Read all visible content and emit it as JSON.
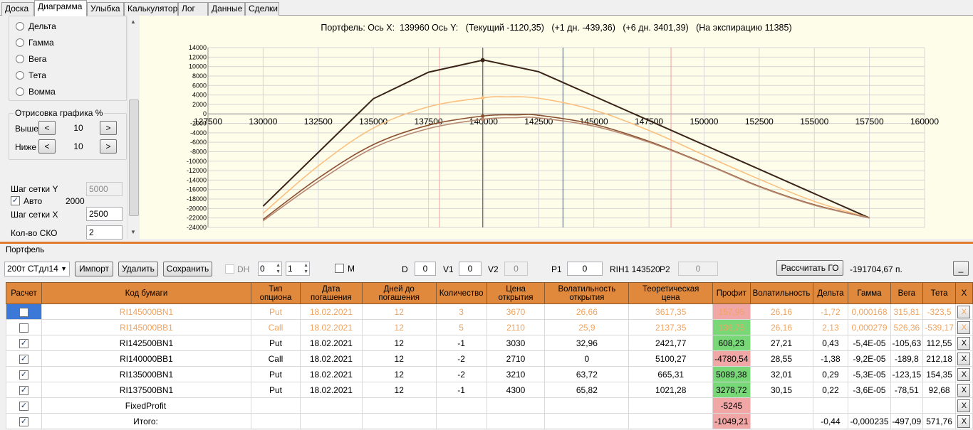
{
  "tabs": [
    "Доска",
    "Диаграмма",
    "Улыбка",
    "Калькулятор",
    "Лог",
    "Данные",
    "Сделки"
  ],
  "left_panel": {
    "radios": [
      "Дельта",
      "Гамма",
      "Вега",
      "Тета",
      "Вомма"
    ],
    "draw_group_title": "Отрисовка графика %",
    "above_label": "Выше",
    "above_value": "10",
    "below_label": "Ниже",
    "below_value": "10",
    "btn_minus": "<",
    "btn_plus": ">",
    "grid_y_label": "Шаг сетки Y",
    "grid_y_value": "5000",
    "auto_label": "Авто",
    "auto_value": "2000",
    "grid_x_label": "Шаг сетки X",
    "grid_x_value": "2500",
    "sko_label": "Кол-во СКО",
    "sko_value": "2"
  },
  "chart_title": "Портфель: Ось X:  139960 Ось Y:   (Текущий -1120,35)   (+1 дн. -439,36)   (+6 дн. 3401,39)   (На экспирацию 11385)",
  "chart_data": {
    "type": "line",
    "xlim": [
      127500,
      160000
    ],
    "ylim": [
      -24000,
      14000
    ],
    "x_ticks": [
      127500,
      130000,
      132500,
      135000,
      137500,
      140000,
      142500,
      145000,
      147500,
      150000,
      152500,
      155000,
      157500,
      160000
    ],
    "x_tick_labels": [
      "127500",
      "130000",
      "132500",
      "135000",
      "137500",
      "140000",
      "142500",
      "145000",
      "147500",
      "150000",
      "152500",
      "155000",
      "157500",
      "160000"
    ],
    "y_ticks": [
      14000,
      12000,
      10000,
      8000,
      6000,
      4000,
      2000,
      0,
      -2000,
      -4000,
      -6000,
      -8000,
      -10000,
      -12000,
      -14000,
      -16000,
      -18000,
      -20000,
      -22000,
      -24000
    ],
    "y_tick_labels": [
      "14000",
      "12000",
      "10000",
      "8000",
      "6000",
      "4000",
      "2000",
      "0",
      "-2000",
      "-4000",
      "-6000",
      "-8000",
      "-10000",
      "-12000",
      "-14000",
      "-16000",
      "-18000",
      "-20000",
      "-22000",
      "-24000"
    ],
    "markers": [
      139960
    ],
    "vlines_red": [
      138000,
      148500
    ],
    "vline_gray": 143600,
    "grid": true,
    "series": [
      {
        "color": "#3a2418",
        "x": [
          130000,
          135000,
          137500,
          140000,
          142500,
          157500
        ],
        "y": [
          -19500,
          3200,
          8800,
          11385,
          8900,
          -22000
        ]
      },
      {
        "color": "#fbbf7f",
        "x": [
          130000,
          132500,
          135000,
          137500,
          140000,
          141000,
          142500,
          145000,
          147500,
          150000,
          152500,
          155000,
          157500
        ],
        "y": [
          -21000,
          -11000,
          -3000,
          1500,
          3401,
          3600,
          3300,
          800,
          -3500,
          -8700,
          -13800,
          -18500,
          -22000
        ]
      },
      {
        "color": "#8b5030",
        "x": [
          130000,
          132500,
          135000,
          137500,
          140000,
          141500,
          142500,
          145000,
          147500,
          150000,
          152500,
          155000,
          157500
        ],
        "y": [
          -22300,
          -13600,
          -6500,
          -2400,
          -439,
          -200,
          -300,
          -2200,
          -5800,
          -10400,
          -15300,
          -19200,
          -22000
        ]
      },
      {
        "color": "#b78872",
        "x": [
          130000,
          132500,
          135000,
          137500,
          140000,
          141500,
          142500,
          145000,
          147500,
          150000,
          152500,
          155000,
          157500
        ],
        "y": [
          -22600,
          -14300,
          -7200,
          -3100,
          -1120,
          -800,
          -850,
          -2600,
          -6000,
          -10500,
          -15400,
          -19300,
          -22000
        ]
      }
    ]
  },
  "portfolio": {
    "group_label": "Портфель",
    "combo_value": "200т СТдл14",
    "import_btn": "Импорт",
    "delete_btn": "Удалить",
    "save_btn": "Сохранить",
    "dh_label": "DH",
    "spin1": "0",
    "spin2": "1",
    "m_label": "M",
    "d_label": "D",
    "d_value": "0",
    "v1_label": "V1",
    "v1_value": "0",
    "v2_label": "V2",
    "v2_value": "0",
    "p1_label": "P1",
    "p1_value": "0",
    "rih_label": "RIH1 143520",
    "p2_label": "P2",
    "p2_value": "0",
    "calc_btn": "Рассчитать ГО",
    "go_value": "-191704,67 п.",
    "min_btn": "_"
  },
  "table": {
    "headers": [
      "Расчет",
      "Код бумаги",
      "Тип\nопциона",
      "Дата\nпогашения",
      "Дней до\nпогашения",
      "Количество",
      "Цена\nоткрытия",
      "Волатильность\nоткрытия",
      "Теоретическая\nцена",
      "Профит",
      "Волатильность",
      "Дельта",
      "Гамма",
      "Вега",
      "Тета",
      "X"
    ],
    "rows": [
      {
        "checked": false,
        "fade": true,
        "code": "RI145000BN1",
        "type": "Put",
        "date": "18.02.2021",
        "days": "12",
        "qty": "3",
        "price": "3670",
        "vol_open": "26,66",
        "theo": "3617,35",
        "profit": "157,95",
        "profit_class": "prof-red",
        "vol": "26,16",
        "delta": "-1,72",
        "gamma": "0,000168",
        "vega": "315,81",
        "theta": "-323,5",
        "x": "X"
      },
      {
        "checked": false,
        "fade": true,
        "code": "RI145000BB1",
        "type": "Call",
        "date": "18.02.2021",
        "days": "12",
        "qty": "5",
        "price": "2110",
        "vol_open": "25,9",
        "theo": "2137,35",
        "profit": "136,75",
        "profit_class": "prof-green",
        "vol": "26,16",
        "delta": "2,13",
        "gamma": "0,000279",
        "vega": "526,36",
        "theta": "-539,17",
        "x": "X"
      },
      {
        "checked": true,
        "fade": false,
        "code": "RI142500BN1",
        "type": "Put",
        "date": "18.02.2021",
        "days": "12",
        "qty": "-1",
        "price": "3030",
        "vol_open": "32,96",
        "theo": "2421,77",
        "profit": "608,23",
        "profit_class": "prof-green",
        "vol": "27,21",
        "delta": "0,43",
        "gamma": "-5,4E-05",
        "vega": "-105,63",
        "theta": "112,55",
        "x": "X"
      },
      {
        "checked": true,
        "fade": false,
        "code": "RI140000BB1",
        "type": "Call",
        "date": "18.02.2021",
        "days": "12",
        "qty": "-2",
        "price": "2710",
        "vol_open": "0",
        "theo": "5100,27",
        "profit": "-4780,54",
        "profit_class": "prof-red",
        "vol": "28,55",
        "delta": "-1,38",
        "gamma": "-9,2E-05",
        "vega": "-189,8",
        "theta": "212,18",
        "x": "X"
      },
      {
        "checked": true,
        "fade": false,
        "code": "RI135000BN1",
        "type": "Put",
        "date": "18.02.2021",
        "days": "12",
        "qty": "-2",
        "price": "3210",
        "vol_open": "63,72",
        "theo": "665,31",
        "profit": "5089,38",
        "profit_class": "prof-green",
        "vol": "32,01",
        "delta": "0,29",
        "gamma": "-5,3E-05",
        "vega": "-123,15",
        "theta": "154,35",
        "x": "X"
      },
      {
        "checked": true,
        "fade": false,
        "code": "RI137500BN1",
        "type": "Put",
        "date": "18.02.2021",
        "days": "12",
        "qty": "-1",
        "price": "4300",
        "vol_open": "65,82",
        "theo": "1021,28",
        "profit": "3278,72",
        "profit_class": "prof-green",
        "vol": "30,15",
        "delta": "0,22",
        "gamma": "-3,6E-05",
        "vega": "-78,51",
        "theta": "92,68",
        "x": "X"
      },
      {
        "checked": true,
        "fade": false,
        "code": "FixedProfit",
        "type": "",
        "date": "",
        "days": "",
        "qty": "",
        "price": "",
        "vol_open": "",
        "theo": "",
        "profit": "-5245",
        "profit_class": "prof-red",
        "vol": "",
        "delta": "",
        "gamma": "",
        "vega": "",
        "theta": "",
        "x": "X"
      },
      {
        "checked": true,
        "fade": false,
        "code": "Итого:",
        "type": "",
        "date": "",
        "days": "",
        "qty": "",
        "price": "",
        "vol_open": "",
        "theo": "",
        "profit": "-1049,21",
        "profit_class": "prof-red",
        "vol": "",
        "delta": "-0,44",
        "gamma": "-0,000235",
        "vega": "-497,09",
        "theta": "571,76",
        "x": "X"
      }
    ]
  }
}
